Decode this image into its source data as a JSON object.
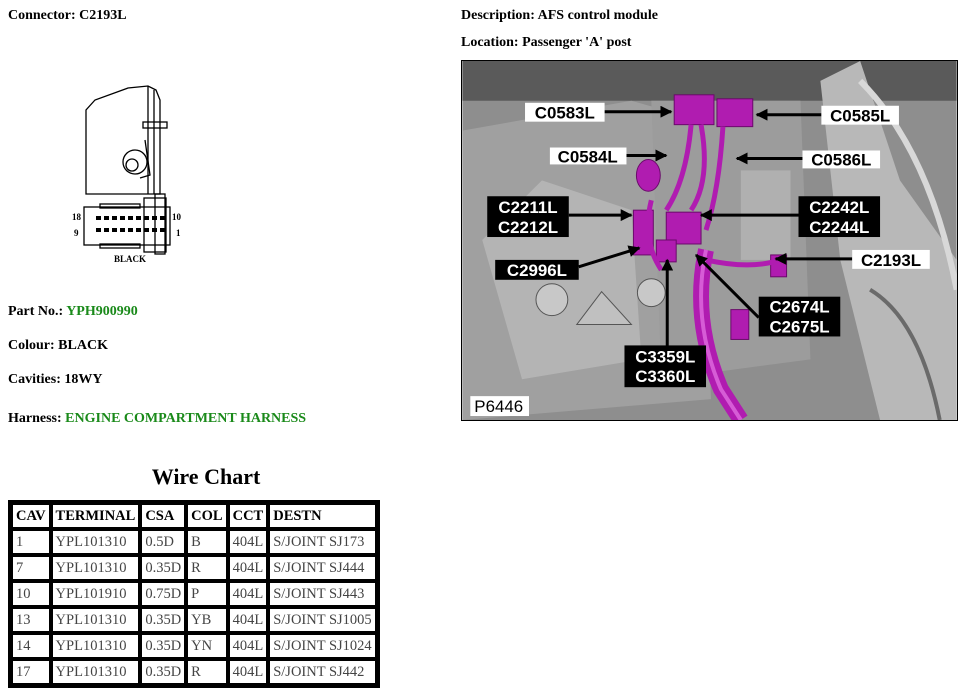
{
  "connector": {
    "label": "Connector:",
    "value": "C2193L"
  },
  "drawing": {
    "pin_left_top": "18",
    "pin_right_top": "10",
    "pin_left_bottom": "9",
    "pin_right_bottom": "1",
    "colour_caption": "BLACK"
  },
  "part_no": {
    "label": "Part No.:",
    "value": "YPH900990"
  },
  "colour": {
    "label": "Colour:",
    "value": "BLACK"
  },
  "cavities": {
    "label": "Cavities:",
    "value": "18WY"
  },
  "harness": {
    "label": "Harness:",
    "value": "ENGINE COMPARTMENT HARNESS"
  },
  "description": {
    "label": "Description:",
    "value": "AFS control module"
  },
  "location": {
    "label": "Location:",
    "value": "Passenger 'A' post"
  },
  "photo": {
    "id": "P6446",
    "harness_color": "#b01cb0",
    "callouts": {
      "c0583": "C0583L",
      "c0585": "C0585L",
      "c0584": "C0584L",
      "c0586": "C0586L",
      "c2211": "C2211L",
      "c2212": "C2212L",
      "c2242": "C2242L",
      "c2244": "C2244L",
      "c2996": "C2996L",
      "c2193": "C2193L",
      "c2674": "C2674L",
      "c2675": "C2675L",
      "c3359": "C3359L",
      "c3360": "C3360L"
    }
  },
  "wire_chart": {
    "title": "Wire Chart",
    "headers": [
      "CAV",
      "TERMINAL",
      "CSA",
      "COL",
      "CCT",
      "DESTN"
    ],
    "rows": [
      [
        "1",
        "YPL101310",
        "0.5D",
        "B",
        "404L",
        "S/JOINT SJ173"
      ],
      [
        "7",
        "YPL101310",
        "0.35D",
        "R",
        "404L",
        "S/JOINT SJ444"
      ],
      [
        "10",
        "YPL101910",
        "0.75D",
        "P",
        "404L",
        "S/JOINT SJ443"
      ],
      [
        "13",
        "YPL101310",
        "0.35D",
        "YB",
        "404L",
        "S/JOINT SJ1005"
      ],
      [
        "14",
        "YPL101310",
        "0.35D",
        "YN",
        "404L",
        "S/JOINT SJ1024"
      ],
      [
        "17",
        "YPL101310",
        "0.35D",
        "R",
        "404L",
        "S/JOINT SJ442"
      ]
    ]
  }
}
